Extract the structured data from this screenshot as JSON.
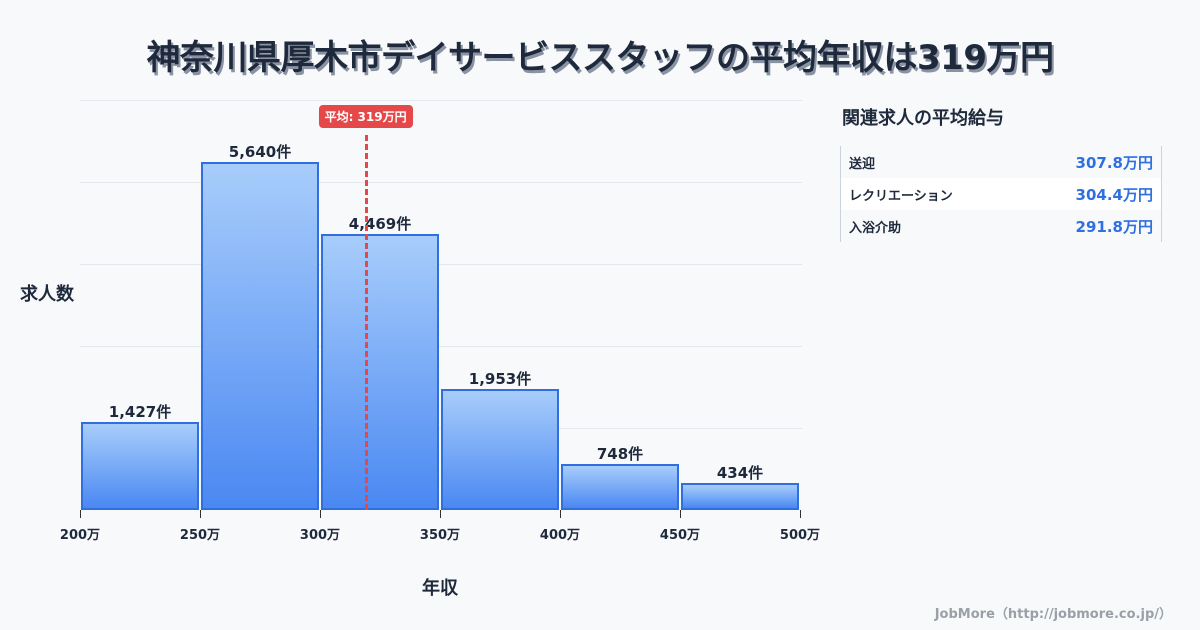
{
  "title": "神奈川県厚木市デイサービススタッフの平均年収は319万円",
  "chart_data": {
    "type": "bar",
    "title": "神奈川県厚木市デイサービススタッフの平均年収は319万円",
    "xlabel": "年収",
    "ylabel": "求人数",
    "categories": [
      "200-250万",
      "250-300万",
      "300-350万",
      "350-400万",
      "400-450万",
      "450-500万"
    ],
    "bin_edges": [
      200,
      250,
      300,
      350,
      400,
      450,
      500
    ],
    "values": [
      1427,
      5640,
      4469,
      1953,
      748,
      434
    ],
    "value_labels": [
      "1,427件",
      "5,640件",
      "4,469件",
      "1,953件",
      "748件",
      "434件"
    ],
    "x_tick_labels": [
      "200万",
      "250万",
      "300万",
      "350万",
      "400万",
      "450万",
      "500万"
    ],
    "xlim": [
      200,
      500
    ],
    "ylim": [
      0,
      6644
    ],
    "grid": true,
    "average": {
      "value": 319,
      "label": "平均: 319万円",
      "color": "#e54848"
    },
    "bar_color_top": "#a8cdfb",
    "bar_color_bottom": "#4a88f2",
    "bar_border_color": "#2f6fe0"
  },
  "sidebar": {
    "title": "関連求人の平均給与",
    "rows": [
      {
        "name": "送迎",
        "value": "307.8万円"
      },
      {
        "name": "レクリエーション",
        "value": "304.4万円"
      },
      {
        "name": "入浴介助",
        "value": "291.8万円"
      }
    ]
  },
  "footer": "JobMore（http://jobmore.co.jp/）"
}
